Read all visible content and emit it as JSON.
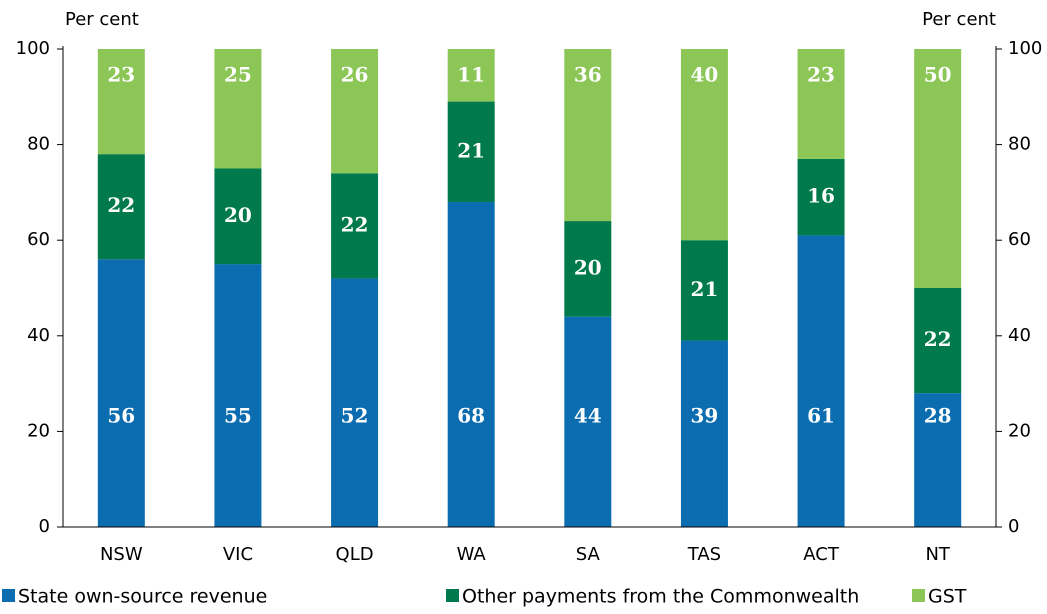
{
  "chart_data": {
    "type": "stacked-bar",
    "ylabel": "Per cent",
    "y2label": "Per cent",
    "categories": [
      "NSW",
      "VIC",
      "QLD",
      "WA",
      "SA",
      "TAS",
      "ACT",
      "NT"
    ],
    "series": [
      {
        "name": "State own-source revenue",
        "color": "#0b6cb0",
        "values": [
          56,
          55,
          52,
          68,
          44,
          39,
          61,
          28
        ]
      },
      {
        "name": "Other payments from the Commonwealth",
        "color": "#00794c",
        "values": [
          22,
          20,
          22,
          21,
          20,
          21,
          16,
          22
        ]
      },
      {
        "name": "GST",
        "color": "#8cc657",
        "values": [
          23,
          25,
          26,
          11,
          36,
          40,
          23,
          50
        ]
      }
    ],
    "ylim": [
      0,
      100
    ],
    "yticks": [
      0,
      20,
      40,
      60,
      80,
      100
    ],
    "y2lim": [
      0,
      100
    ],
    "y2ticks": [
      0,
      20,
      40,
      60,
      80,
      100
    ],
    "legend": "bottom"
  }
}
